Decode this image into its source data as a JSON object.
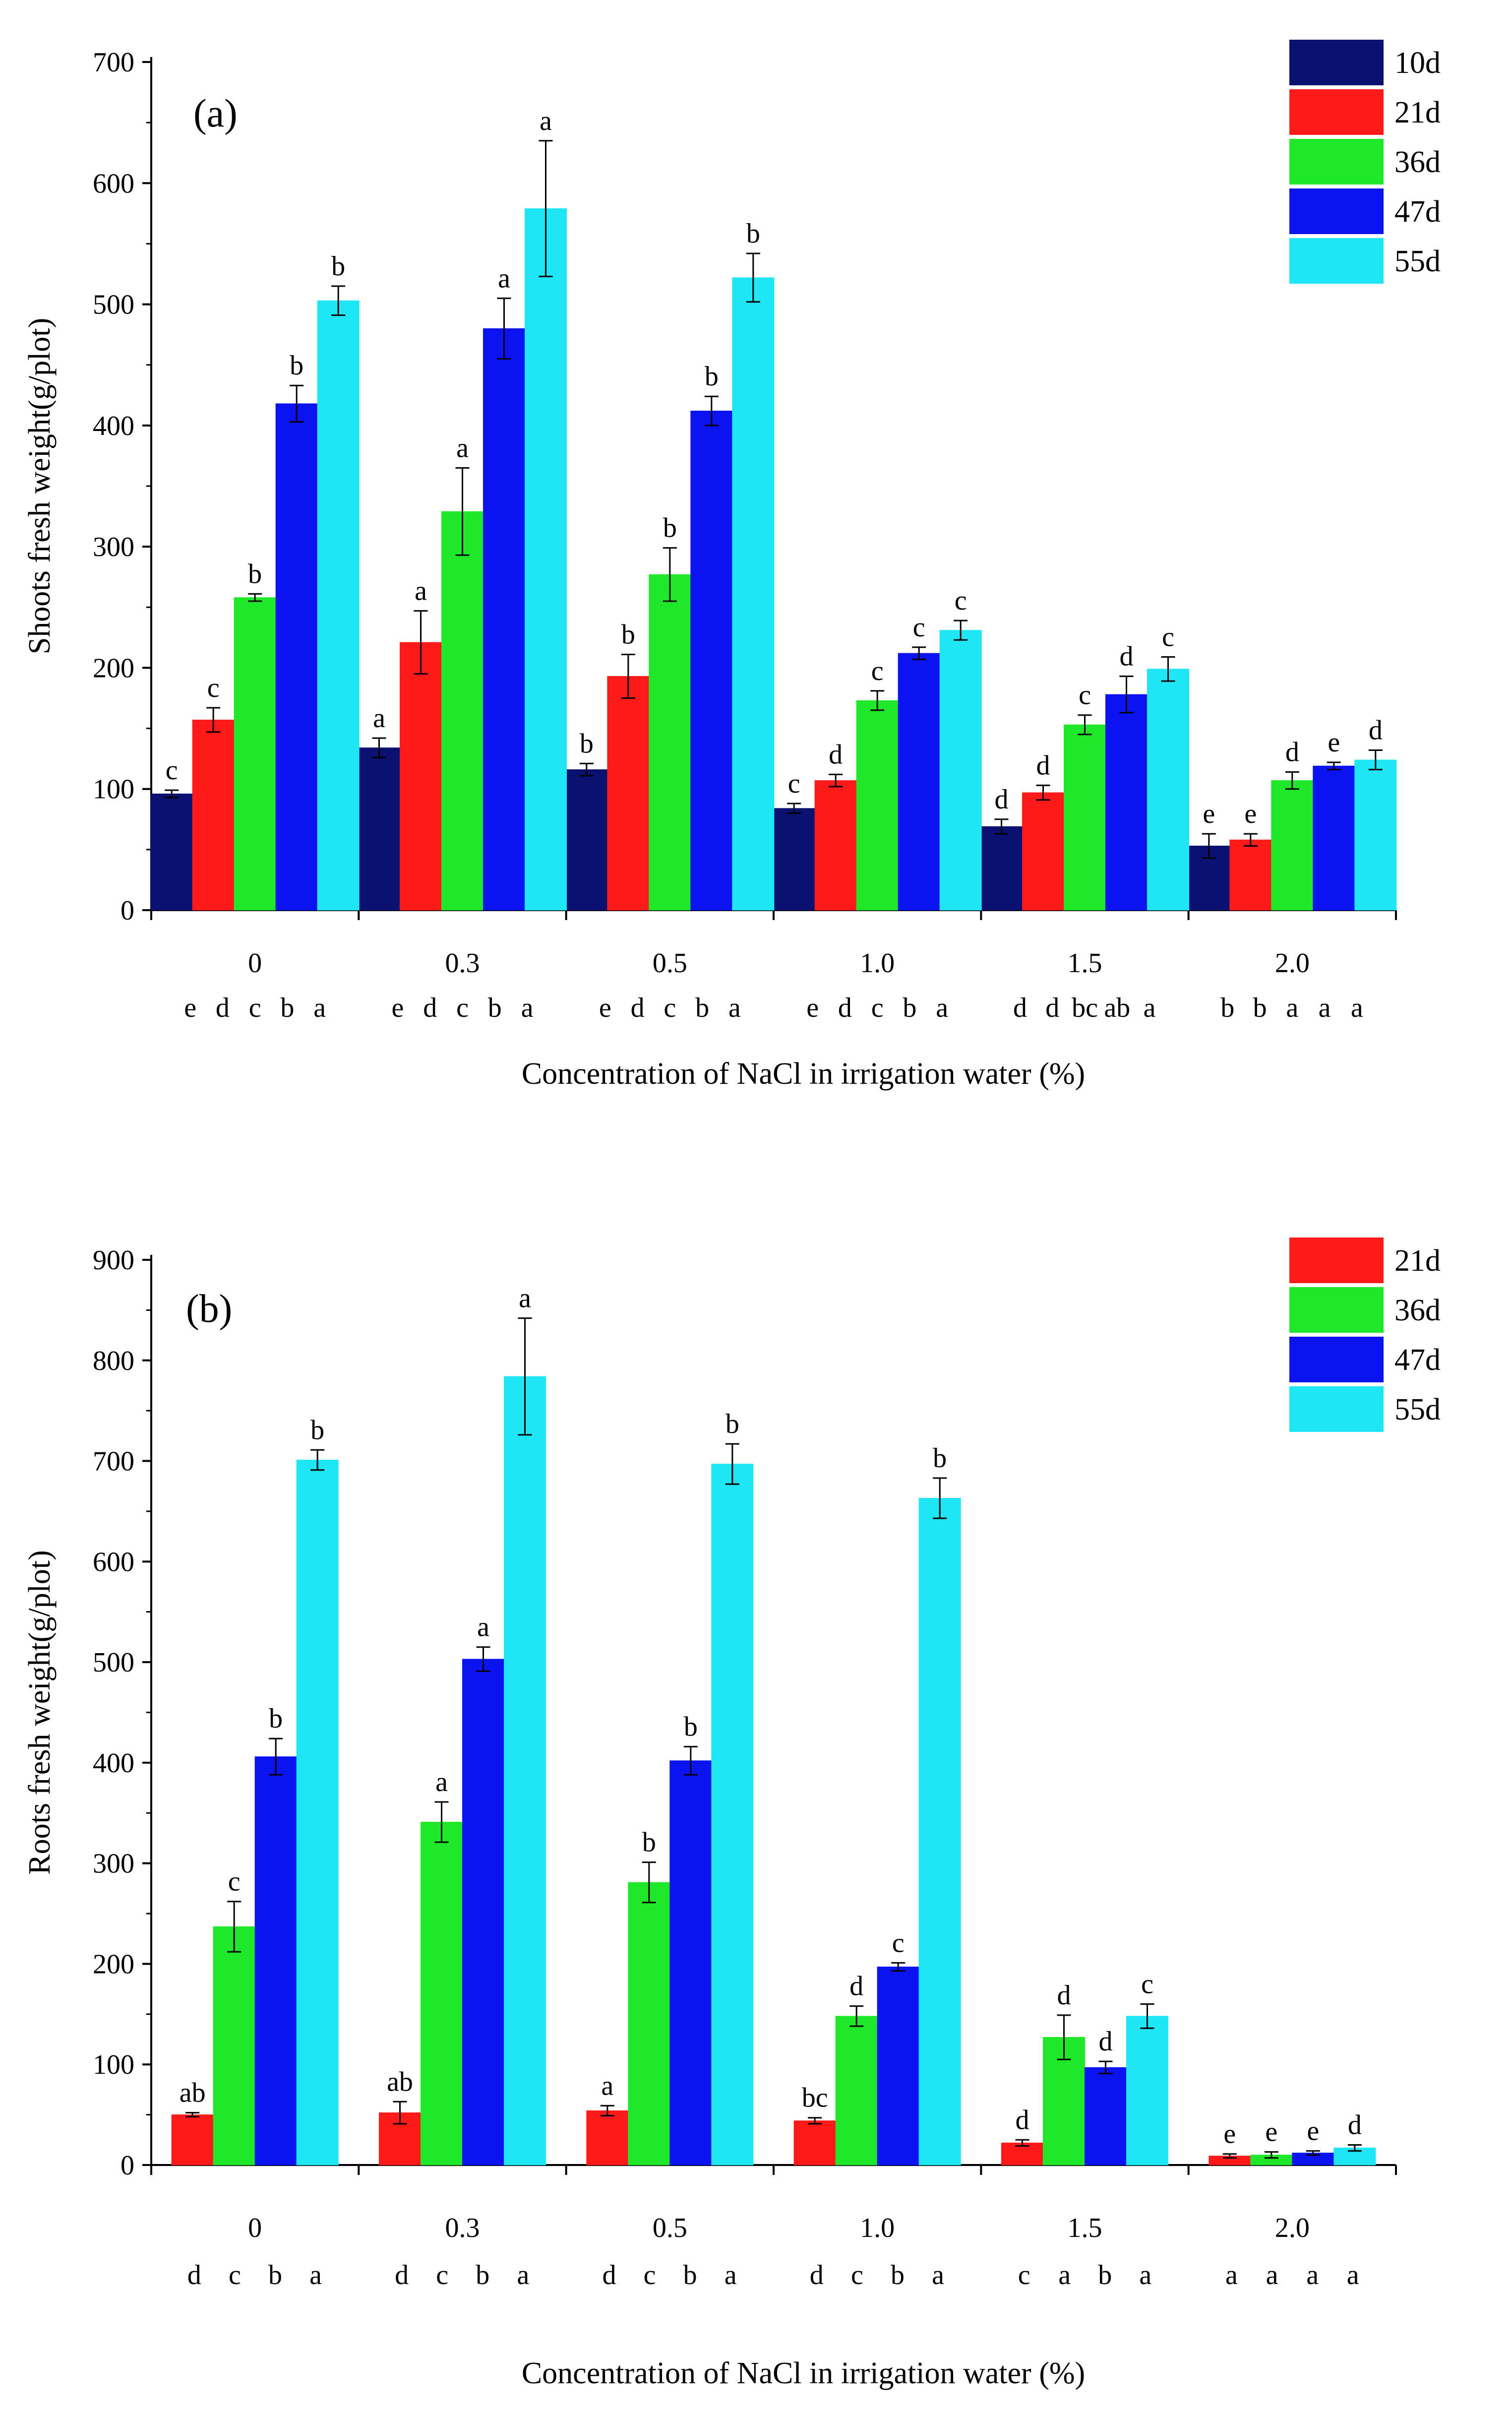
{
  "chart_data": [
    {
      "type": "bar",
      "panel_label": "(a)",
      "xlabel": "Concentration of NaCl in irrigation water (%)",
      "ylabel": "Shoots fresh weight(g/plot)",
      "ylim": [
        0,
        700
      ],
      "yticks": [
        0,
        100,
        200,
        300,
        400,
        500,
        600,
        700
      ],
      "categories": [
        "0",
        "0.3",
        "0.5",
        "1.0",
        "1.5",
        "2.0"
      ],
      "series": [
        {
          "name": "10d",
          "color": "#0a1170",
          "values": [
            96,
            134,
            116,
            84,
            69,
            53
          ],
          "errors": [
            3,
            8,
            5,
            4,
            6,
            10
          ],
          "letters": [
            "c",
            "a",
            "b",
            "c",
            "d",
            "e"
          ]
        },
        {
          "name": "21d",
          "color": "#ff1a1a",
          "values": [
            157,
            221,
            193,
            107,
            97,
            58
          ],
          "errors": [
            10,
            26,
            18,
            5,
            6,
            5
          ],
          "letters": [
            "c",
            "a",
            "b",
            "d",
            "d",
            "e"
          ]
        },
        {
          "name": "36d",
          "color": "#1fe82a",
          "values": [
            258,
            329,
            277,
            173,
            153,
            107
          ],
          "errors": [
            3,
            36,
            22,
            8,
            8,
            7
          ],
          "letters": [
            "b",
            "a",
            "b",
            "c",
            "c",
            "d"
          ]
        },
        {
          "name": "47d",
          "color": "#0a13f0",
          "values": [
            418,
            480,
            412,
            212,
            178,
            119
          ],
          "errors": [
            15,
            25,
            12,
            5,
            15,
            3
          ],
          "letters": [
            "b",
            "a",
            "b",
            "c",
            "d",
            "e"
          ]
        },
        {
          "name": "55d",
          "color": "#1ee6f5",
          "values": [
            503,
            579,
            522,
            231,
            199,
            124
          ],
          "errors": [
            12,
            56,
            20,
            8,
            10,
            8
          ],
          "letters": [
            "b",
            "a",
            "b",
            "c",
            "c",
            "d"
          ]
        }
      ],
      "group_letters": [
        [
          "e",
          "d",
          "c",
          "b",
          "a"
        ],
        [
          "e",
          "d",
          "c",
          "b",
          "a"
        ],
        [
          "e",
          "d",
          "c",
          "b",
          "a"
        ],
        [
          "e",
          "d",
          "c",
          "b",
          "a"
        ],
        [
          "d",
          "d",
          "bc",
          "ab",
          "a"
        ],
        [
          "b",
          "b",
          "a",
          "a",
          "a"
        ]
      ]
    },
    {
      "type": "bar",
      "panel_label": "(b)",
      "xlabel": "Concentration of NaCl in irrigation water (%)",
      "ylabel": "Roots fresh weight(g/plot)",
      "ylim": [
        0,
        900
      ],
      "yticks": [
        0,
        100,
        200,
        300,
        400,
        500,
        600,
        700,
        800,
        900
      ],
      "categories": [
        "0",
        "0.3",
        "0.5",
        "1.0",
        "1.5",
        "2.0"
      ],
      "series": [
        {
          "name": "21d",
          "color": "#ff1a1a",
          "values": [
            50,
            52,
            54,
            44,
            22,
            9
          ],
          "errors": [
            2,
            11,
            5,
            3,
            3,
            2
          ],
          "letters": [
            "ab",
            "ab",
            "a",
            "bc",
            "d",
            "e"
          ]
        },
        {
          "name": "36d",
          "color": "#1fe82a",
          "values": [
            237,
            341,
            281,
            148,
            127,
            10
          ],
          "errors": [
            25,
            20,
            20,
            10,
            22,
            3
          ],
          "letters": [
            "c",
            "a",
            "b",
            "d",
            "d",
            "e"
          ]
        },
        {
          "name": "47d",
          "color": "#0a13f0",
          "values": [
            406,
            503,
            402,
            197,
            97,
            12
          ],
          "errors": [
            18,
            12,
            14,
            4,
            6,
            2
          ],
          "letters": [
            "b",
            "a",
            "b",
            "c",
            "d",
            "e"
          ]
        },
        {
          "name": "55d",
          "color": "#1ee6f5",
          "values": [
            701,
            784,
            697,
            663,
            null,
            17
          ],
          "errors": [
            10,
            58,
            20,
            20,
            0,
            3
          ],
          "letters": [
            "b",
            "a",
            "b",
            "b",
            "",
            "d"
          ]
        }
      ],
      "extra_bars": [
        {
          "category_index": 4,
          "series_index": 3,
          "value": 148,
          "error": 12,
          "letter": "c"
        }
      ],
      "group_letters": [
        [
          "d",
          "c",
          "b",
          "a"
        ],
        [
          "d",
          "c",
          "b",
          "a"
        ],
        [
          "d",
          "c",
          "b",
          "a"
        ],
        [
          "d",
          "c",
          "b",
          "a"
        ],
        [
          "c",
          "a",
          "b",
          "a"
        ],
        [
          "a",
          "a",
          "a",
          "a"
        ]
      ]
    }
  ]
}
